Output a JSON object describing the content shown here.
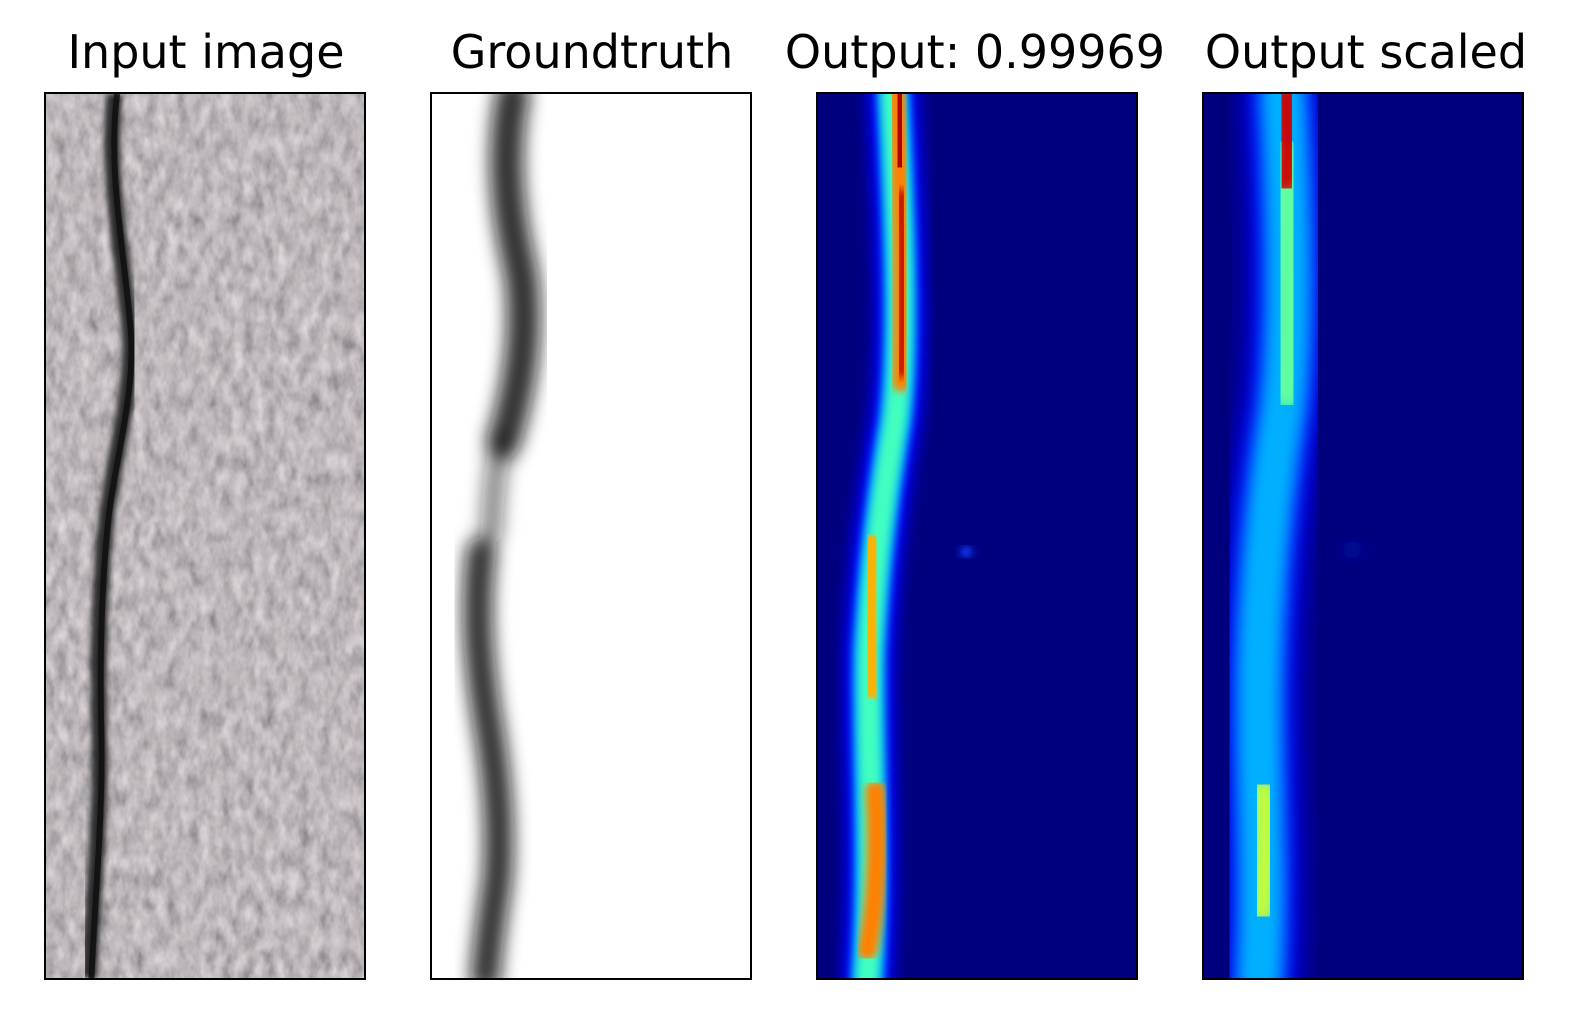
{
  "panels": [
    {
      "title": "Input image"
    },
    {
      "title": "Groundtruth"
    },
    {
      "title": "Output: 0.99969"
    },
    {
      "title": "Output scaled"
    }
  ]
}
